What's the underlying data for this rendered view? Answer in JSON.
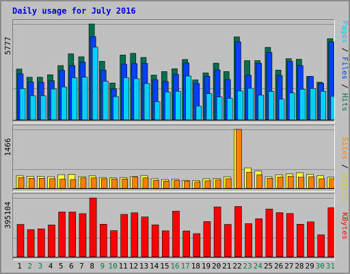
{
  "title": "Daily usage for July 2016",
  "y_axis_labels": {
    "hits_pages_files_max": "5777",
    "sites_visits_max": "1466",
    "kbytes_max": "395104"
  },
  "right_labels": {
    "pages": "Pages",
    "files": "Files",
    "hits": "Hits",
    "visits": "Visits",
    "sites": "Sites",
    "kbytes": "KBytes",
    "separator": " / "
  },
  "colors": {
    "hits": "#006f4f",
    "files": "#0040ff",
    "pages": "#00d0ff",
    "visits": "#ffff40",
    "sites": "#ff8000",
    "kbytes": "#ff0000",
    "weekday_label": "#000000",
    "weekend_label": "#008040"
  },
  "chart_data": [
    {
      "type": "bar",
      "categories": [
        "1",
        "2",
        "3",
        "4",
        "5",
        "6",
        "7",
        "8",
        "9",
        "10",
        "11",
        "12",
        "13",
        "14",
        "15",
        "16",
        "17",
        "18",
        "19",
        "20",
        "21",
        "22",
        "23",
        "24",
        "25",
        "26",
        "27",
        "28",
        "29",
        "30",
        "31"
      ],
      "weekend_days": [
        "2",
        "3",
        "9",
        "10",
        "16",
        "17",
        "23",
        "24",
        "30",
        "31"
      ],
      "ylim": [
        0,
        5777
      ],
      "series": [
        {
          "name": "Hits",
          "values": [
            3060,
            2570,
            2570,
            2720,
            3270,
            3980,
            3800,
            5777,
            3530,
            2220,
            3910,
            4010,
            3760,
            2700,
            2910,
            3080,
            3640,
            2410,
            2830,
            3420,
            2910,
            5000,
            3570,
            3570,
            4370,
            3000,
            3690,
            3650,
            2620,
            2270,
            4890
          ]
        },
        {
          "name": "Files",
          "values": [
            2770,
            2280,
            2260,
            2360,
            2990,
            3280,
            3480,
            5020,
            3000,
            1880,
            3350,
            3390,
            3400,
            2410,
            2310,
            2740,
            3430,
            2190,
            2630,
            3010,
            2430,
            4700,
            2690,
            3410,
            4070,
            2680,
            3520,
            3270,
            2620,
            2210,
            4700
          ]
        },
        {
          "name": "Pages",
          "values": [
            1880,
            1450,
            1450,
            1860,
            1980,
            2540,
            2570,
            4380,
            2330,
            1400,
            2540,
            2480,
            2190,
            1100,
            1680,
            1720,
            2640,
            830,
            1580,
            1380,
            1300,
            1740,
            1900,
            1490,
            1710,
            1250,
            1620,
            1840,
            1890,
            1720,
            1420
          ]
        }
      ]
    },
    {
      "type": "bar",
      "categories": [
        "1",
        "2",
        "3",
        "4",
        "5",
        "6",
        "7",
        "8",
        "9",
        "10",
        "11",
        "12",
        "13",
        "14",
        "15",
        "16",
        "17",
        "18",
        "19",
        "20",
        "21",
        "22",
        "23",
        "24",
        "25",
        "26",
        "27",
        "28",
        "29",
        "30",
        "31"
      ],
      "ylim": [
        0,
        1466
      ],
      "series": [
        {
          "name": "Visits",
          "values": [
            320,
            300,
            300,
            290,
            340,
            350,
            290,
            310,
            270,
            260,
            270,
            300,
            320,
            240,
            220,
            230,
            200,
            200,
            240,
            250,
            290,
            1466,
            510,
            430,
            290,
            340,
            360,
            390,
            350,
            320,
            280
          ]
        },
        {
          "name": "Sites",
          "values": [
            270,
            250,
            250,
            240,
            230,
            220,
            260,
            260,
            240,
            230,
            230,
            280,
            260,
            200,
            180,
            200,
            180,
            160,
            190,
            210,
            240,
            1466,
            400,
            340,
            250,
            280,
            300,
            280,
            290,
            240,
            240
          ]
        }
      ]
    },
    {
      "type": "bar",
      "categories": [
        "1",
        "2",
        "3",
        "4",
        "5",
        "6",
        "7",
        "8",
        "9",
        "10",
        "11",
        "12",
        "13",
        "14",
        "15",
        "16",
        "17",
        "18",
        "19",
        "20",
        "21",
        "22",
        "23",
        "24",
        "25",
        "26",
        "27",
        "28",
        "29",
        "30",
        "31"
      ],
      "ylim": [
        0,
        395104
      ],
      "series": [
        {
          "name": "KBytes",
          "values": [
            218000,
            183000,
            188000,
            214000,
            301000,
            301000,
            290000,
            395104,
            219000,
            176000,
            285000,
            296000,
            268000,
            215000,
            175000,
            307000,
            174000,
            156000,
            237000,
            335000,
            218000,
            338000,
            223000,
            256000,
            321000,
            297000,
            291000,
            219000,
            235000,
            148000,
            330000
          ]
        }
      ]
    }
  ]
}
